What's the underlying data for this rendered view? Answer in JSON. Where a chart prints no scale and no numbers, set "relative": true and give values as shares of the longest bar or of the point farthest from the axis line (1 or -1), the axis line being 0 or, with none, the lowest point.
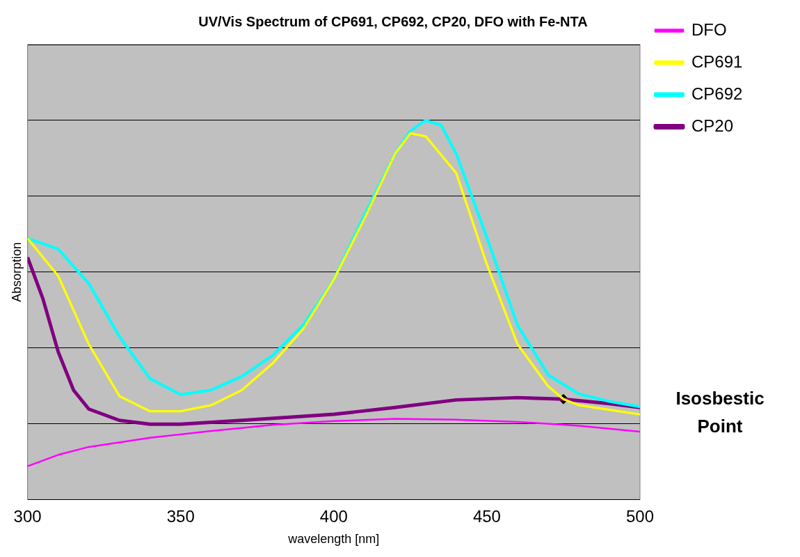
{
  "chart_data": {
    "type": "line",
    "title": "UV/Vis Spectrum of CP691, CP692, CP20, DFO with Fe-NTA",
    "xlabel": "wavelength [nm]",
    "ylabel": "Absorption",
    "relative": true,
    "xlim": [
      300,
      500
    ],
    "xticks": [
      300,
      350,
      400,
      450,
      500
    ],
    "grid": "y",
    "legend": "right",
    "marker": "none",
    "line_style": "solid",
    "annotations": [
      "Isosbestic Point"
    ],
    "series": [
      {
        "name": "DFO",
        "color": "#ff00ff",
        "x": [
          300,
          310,
          320,
          340,
          360,
          380,
          400,
          420,
          440,
          460,
          480,
          500
        ],
        "values": [
          0.088,
          0.118,
          0.139,
          0.163,
          0.181,
          0.197,
          0.207,
          0.213,
          0.211,
          0.205,
          0.195,
          0.179
        ]
      },
      {
        "name": "CP691",
        "color": "#ffff00",
        "x": [
          300,
          310,
          320,
          330,
          340,
          350,
          360,
          370,
          380,
          390,
          400,
          410,
          420,
          425,
          430,
          440,
          450,
          460,
          470,
          475,
          480,
          490,
          500
        ],
        "values": [
          0.689,
          0.59,
          0.41,
          0.273,
          0.233,
          0.233,
          0.249,
          0.289,
          0.359,
          0.45,
          0.58,
          0.741,
          0.912,
          0.966,
          0.958,
          0.861,
          0.62,
          0.41,
          0.299,
          0.265,
          0.249,
          0.237,
          0.225
        ]
      },
      {
        "name": "CP692",
        "color": "#00ffff",
        "x": [
          300,
          310,
          320,
          330,
          340,
          350,
          360,
          370,
          380,
          390,
          400,
          410,
          420,
          425,
          430,
          435,
          440,
          450,
          460,
          470,
          480,
          490,
          500
        ],
        "values": [
          0.689,
          0.661,
          0.57,
          0.43,
          0.319,
          0.277,
          0.289,
          0.325,
          0.38,
          0.46,
          0.58,
          0.751,
          0.912,
          0.972,
          1,
          0.988,
          0.912,
          0.691,
          0.46,
          0.329,
          0.279,
          0.259,
          0.245
        ]
      },
      {
        "name": "CP20",
        "color": "#800080",
        "x": [
          300,
          305,
          310,
          315,
          320,
          330,
          340,
          350,
          370,
          400,
          420,
          440,
          460,
          475,
          490,
          500
        ],
        "values": [
          0.639,
          0.53,
          0.39,
          0.289,
          0.239,
          0.209,
          0.199,
          0.199,
          0.209,
          0.225,
          0.243,
          0.263,
          0.269,
          0.265,
          0.253,
          0.243
        ]
      },
      {
        "type": "scatter",
        "color": "#000000",
        "marker": "diamond",
        "x": [
          475
        ],
        "values": [
          0.265
        ]
      }
    ]
  }
}
